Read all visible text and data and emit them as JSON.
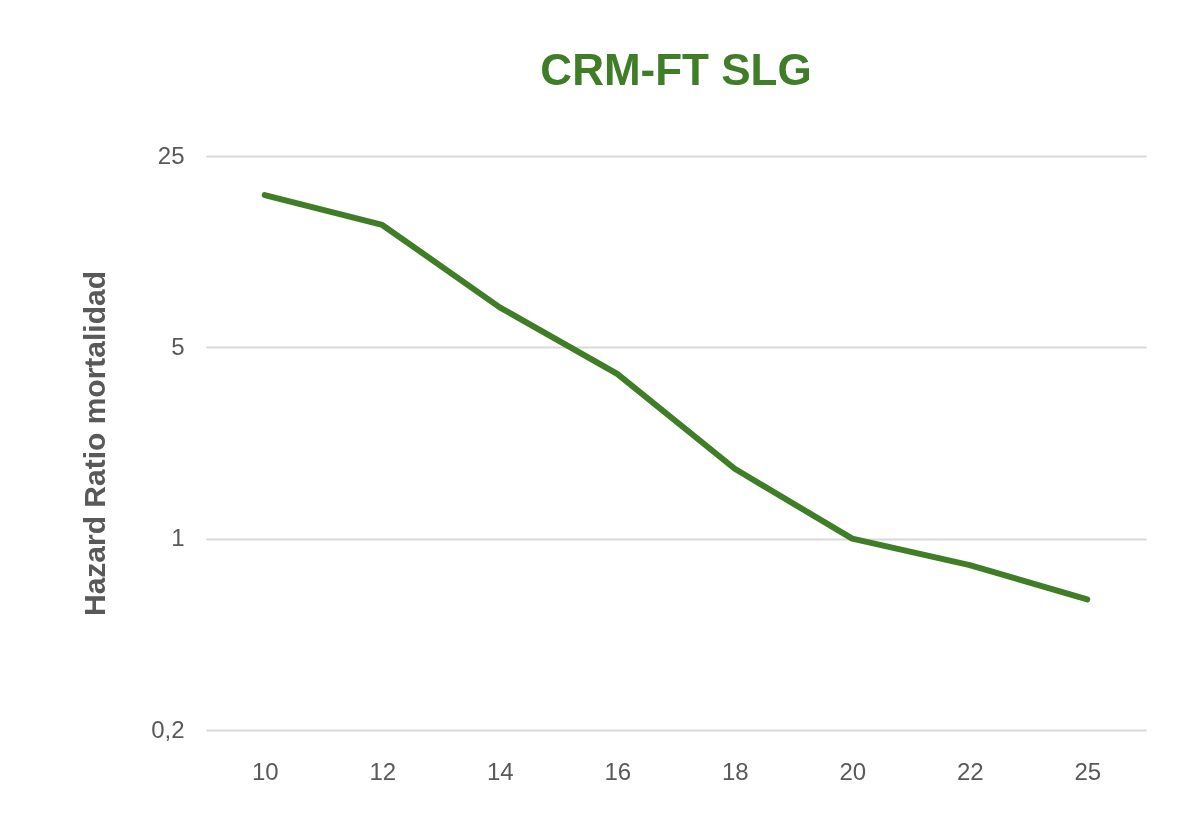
{
  "chart_data": {
    "type": "line",
    "title": "CRM-FT SLG",
    "ylabel": "Hazard Ratio mortalidad",
    "categories": [
      "10",
      "12",
      "14",
      "16",
      "18",
      "20",
      "22",
      "25"
    ],
    "series": [
      {
        "color": "#3f7d26",
        "values": [
          18,
          14,
          7,
          4,
          1.8,
          1,
          0.8,
          0.6
        ]
      }
    ],
    "log": "y",
    "ylim": [
      0.2,
      25
    ],
    "yticks": [
      {
        "value": 0.2,
        "label": "0,2"
      },
      1,
      5,
      25
    ],
    "grid": "y",
    "marker": "none",
    "line_style": "solid"
  }
}
